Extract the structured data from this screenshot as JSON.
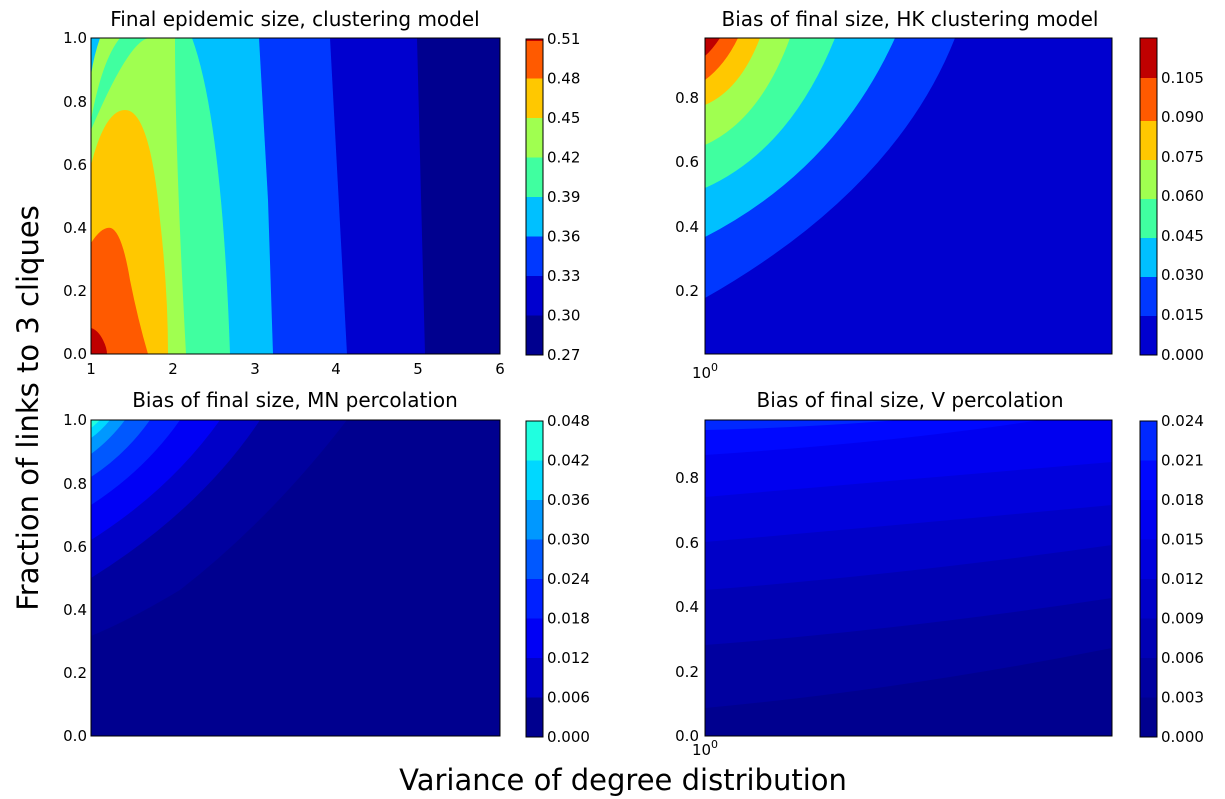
{
  "figure": {
    "ylabel": "Fraction of links to 3 cliques",
    "xlabel": "Variance of degree distribution"
  },
  "chart_data": [
    {
      "type": "heatmap",
      "title": "Final epidemic size, clustering model",
      "x_ticks": [
        "1",
        "2",
        "3",
        "4",
        "5",
        "6"
      ],
      "y_ticks": [
        "0.0",
        "0.2",
        "0.4",
        "0.6",
        "0.8",
        "1.0"
      ],
      "colorbar_ticks": [
        "0.27",
        "0.30",
        "0.33",
        "0.36",
        "0.39",
        "0.42",
        "0.45",
        "0.48",
        "0.51"
      ],
      "colormap": "jet",
      "levels": 8,
      "xlim": [
        1,
        6
      ],
      "ylim": [
        0,
        1
      ],
      "contour_data": {
        "x": [
          1,
          2,
          3,
          4,
          5,
          6
        ],
        "y": [
          0,
          0.2,
          0.4,
          0.6,
          0.8,
          1.0
        ],
        "z": [
          [
            0.5,
            0.42,
            0.36,
            0.325,
            0.3,
            0.285
          ],
          [
            0.49,
            0.42,
            0.36,
            0.325,
            0.3,
            0.285
          ],
          [
            0.47,
            0.41,
            0.355,
            0.32,
            0.297,
            0.283
          ],
          [
            0.455,
            0.405,
            0.355,
            0.32,
            0.297,
            0.283
          ],
          [
            0.43,
            0.395,
            0.35,
            0.318,
            0.296,
            0.282
          ],
          [
            0.39,
            0.38,
            0.345,
            0.315,
            0.295,
            0.281
          ]
        ]
      }
    },
    {
      "type": "heatmap",
      "title": "Bias of final size, HK clustering model",
      "x_ticks": [
        "10^0"
      ],
      "y_ticks": [
        "0.2",
        "0.4",
        "0.6",
        "0.8"
      ],
      "colorbar_ticks": [
        "0.000",
        "0.015",
        "0.030",
        "0.045",
        "0.060",
        "0.075",
        "0.090",
        "0.105"
      ],
      "colormap": "jet",
      "levels": 8,
      "xscale": "log",
      "ylim": [
        0,
        0.98
      ]
    },
    {
      "type": "heatmap",
      "title": "Bias of final size, MN percolation",
      "x_ticks": [],
      "y_ticks": [
        "0.0",
        "0.2",
        "0.4",
        "0.6",
        "0.8",
        "1.0"
      ],
      "colorbar_ticks": [
        "0.000",
        "0.006",
        "0.012",
        "0.018",
        "0.024",
        "0.030",
        "0.036",
        "0.042",
        "0.048"
      ],
      "colormap": "jet",
      "levels": 8,
      "ylim": [
        0,
        1
      ]
    },
    {
      "type": "heatmap",
      "title": "Bias of final size, V percolation",
      "x_ticks": [
        "10^0"
      ],
      "y_ticks": [
        "0.0",
        "0.2",
        "0.4",
        "0.6",
        "0.8"
      ],
      "colorbar_ticks": [
        "0.000",
        "0.003",
        "0.006",
        "0.009",
        "0.012",
        "0.015",
        "0.018",
        "0.021",
        "0.024"
      ],
      "colormap": "jet",
      "levels": 8,
      "xscale": "log",
      "ylim": [
        0,
        0.98
      ]
    }
  ],
  "colors": {
    "c0": "#00008f",
    "c1": "#0000cf",
    "c2": "#0038ff",
    "c3": "#00c0ff",
    "c4": "#40ffa0",
    "c5": "#a0ff50",
    "c6": "#ffc800",
    "c7": "#ff5a00",
    "c8": "#bf0000",
    "p3_0": "#00008f",
    "p3_1": "#00009f",
    "p3_2": "#0000c8",
    "p3_3": "#0000f5",
    "p3_4": "#0020ff",
    "p3_5": "#0058ff",
    "p3_6": "#0098ff",
    "p3_7": "#00d8ff",
    "p3_8": "#20ffe0",
    "p4_0": "#00008f",
    "p4_1": "#0000a0",
    "p4_2": "#0000b4",
    "p4_3": "#0000c8",
    "p4_4": "#0000dc",
    "p4_5": "#0000f0",
    "p4_6": "#0008ff",
    "p4_7": "#0028ff",
    "p4_8": "#0048ff"
  }
}
